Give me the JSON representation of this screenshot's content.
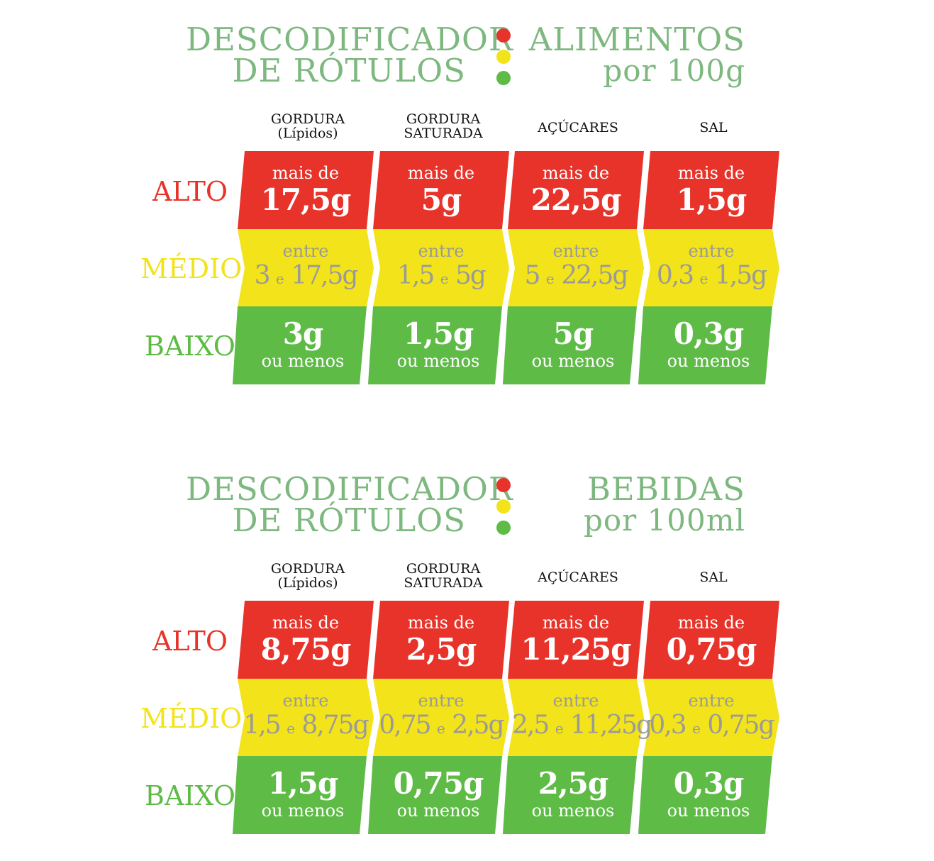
{
  "colors": {
    "title_green": "#7db87f",
    "red": "#e8332a",
    "yellow": "#f2e31b",
    "green": "#5dbb46"
  },
  "sections": [
    {
      "title_line1": "DESCODIFICADOR",
      "title_line2": "DE RÓTULOS",
      "category": "ALIMENTOS",
      "unit": "por 100g",
      "columns": [
        {
          "line1": "GORDURA",
          "line2": "(Lípidos)"
        },
        {
          "line1": "GORDURA",
          "line2": "SATURADA"
        },
        {
          "line1": "AÇÚCARES",
          "line2": ""
        },
        {
          "line1": "SAL",
          "line2": ""
        }
      ],
      "rows": {
        "alto": "ALTO",
        "medio": "MÉDIO",
        "baixo": "BAIXO"
      },
      "alto": [
        {
          "prefix": "mais de",
          "value": "17,5g"
        },
        {
          "prefix": "mais de",
          "value": "5g"
        },
        {
          "prefix": "mais de",
          "value": "22,5g"
        },
        {
          "prefix": "mais de",
          "value": "1,5g"
        }
      ],
      "medio": [
        {
          "prefix": "entre",
          "from": "3",
          "joiner": "e",
          "to": "17,5g"
        },
        {
          "prefix": "entre",
          "from": "1,5",
          "joiner": "e",
          "to": "5g"
        },
        {
          "prefix": "entre",
          "from": "5",
          "joiner": "e",
          "to": "22,5g"
        },
        {
          "prefix": "entre",
          "from": "0,3",
          "joiner": "e",
          "to": "1,5g"
        }
      ],
      "baixo": [
        {
          "value": "3g",
          "suffix": "ou menos"
        },
        {
          "value": "1,5g",
          "suffix": "ou menos"
        },
        {
          "value": "5g",
          "suffix": "ou menos"
        },
        {
          "value": "0,3g",
          "suffix": "ou menos"
        }
      ]
    },
    {
      "title_line1": "DESCODIFICADOR",
      "title_line2": "DE RÓTULOS",
      "category": "BEBIDAS",
      "unit": "por 100ml",
      "columns": [
        {
          "line1": "GORDURA",
          "line2": "(Lípidos)"
        },
        {
          "line1": "GORDURA",
          "line2": "SATURADA"
        },
        {
          "line1": "AÇÚCARES",
          "line2": ""
        },
        {
          "line1": "SAL",
          "line2": ""
        }
      ],
      "rows": {
        "alto": "ALTO",
        "medio": "MÉDIO",
        "baixo": "BAIXO"
      },
      "alto": [
        {
          "prefix": "mais de",
          "value": "8,75g"
        },
        {
          "prefix": "mais de",
          "value": "2,5g"
        },
        {
          "prefix": "mais de",
          "value": "11,25g"
        },
        {
          "prefix": "mais de",
          "value": "0,75g"
        }
      ],
      "medio": [
        {
          "prefix": "entre",
          "from": "1,5",
          "joiner": "e",
          "to": "8,75g"
        },
        {
          "prefix": "entre",
          "from": "0,75",
          "joiner": "e",
          "to": "2,5g"
        },
        {
          "prefix": "entre",
          "from": "2,5",
          "joiner": "e",
          "to": "11,25g"
        },
        {
          "prefix": "entre",
          "from": "0,3",
          "joiner": "e",
          "to": "0,75g"
        }
      ],
      "baixo": [
        {
          "value": "1,5g",
          "suffix": "ou menos"
        },
        {
          "value": "0,75g",
          "suffix": "ou menos"
        },
        {
          "value": "2,5g",
          "suffix": "ou menos"
        },
        {
          "value": "0,3g",
          "suffix": "ou menos"
        }
      ]
    }
  ]
}
